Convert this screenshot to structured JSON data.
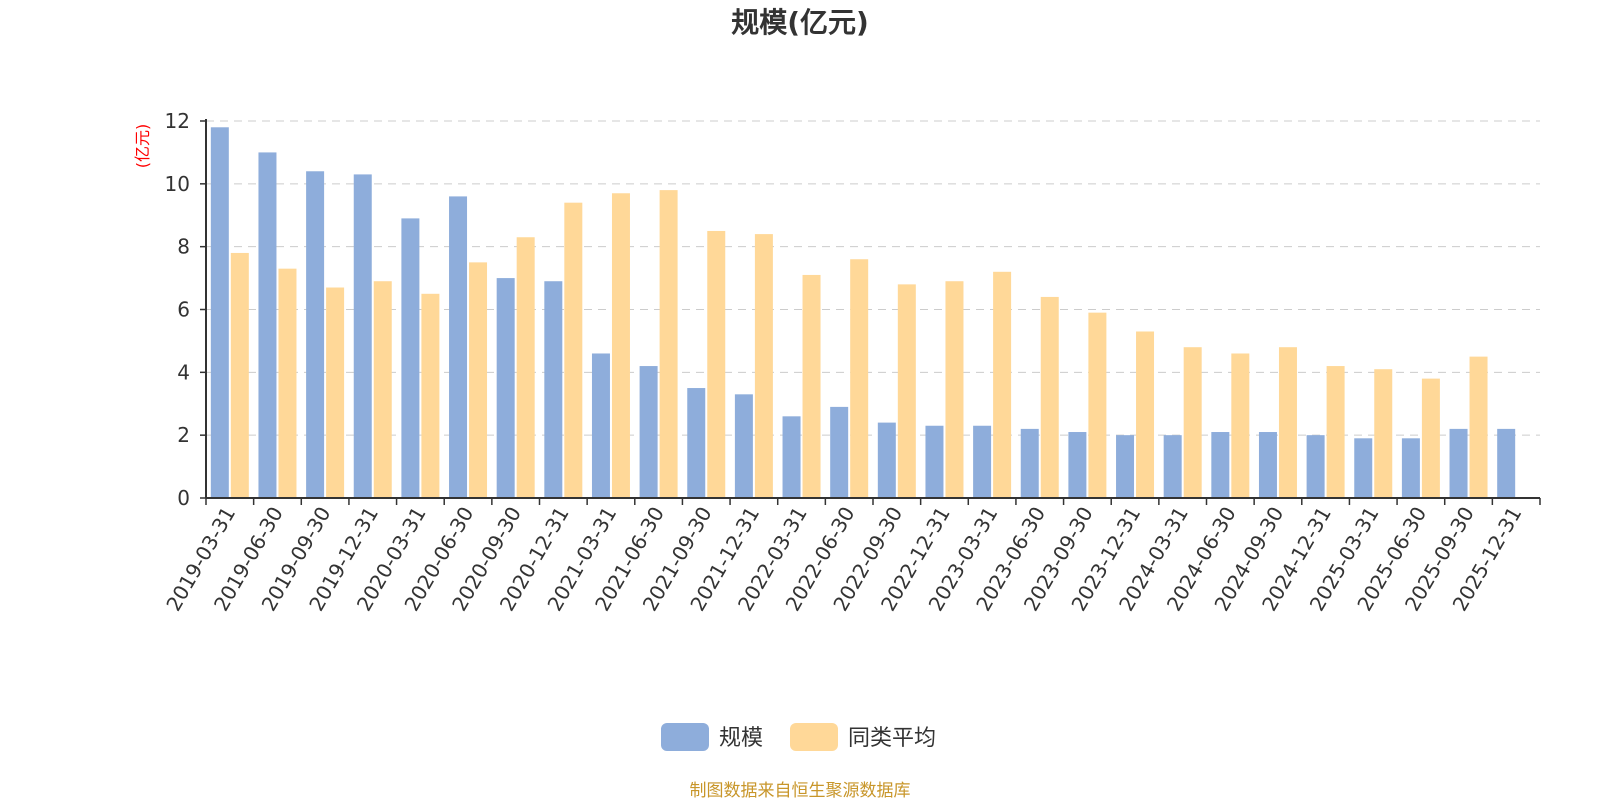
{
  "chart_data": {
    "type": "bar",
    "title": "规模(亿元)",
    "ylabel": "(亿元)",
    "ylim": [
      0,
      12
    ],
    "yticks": [
      0,
      2,
      4,
      6,
      8,
      10,
      12
    ],
    "grid": true,
    "legend_position": "bottom-center",
    "categories": [
      "2019-03-31",
      "2019-06-30",
      "2019-09-30",
      "2019-12-31",
      "2020-03-31",
      "2020-06-30",
      "2020-09-30",
      "2020-12-31",
      "2021-03-31",
      "2021-06-30",
      "2021-09-30",
      "2021-12-31",
      "2022-03-31",
      "2022-06-30",
      "2022-09-30",
      "2022-12-31",
      "2023-03-31",
      "2023-06-30",
      "2023-09-30",
      "2023-12-31",
      "2024-03-31",
      "2024-06-30",
      "2024-09-30",
      "2024-12-31",
      "2025-03-31",
      "2025-06-30",
      "2025-09-30",
      "2025-12-31"
    ],
    "series": [
      {
        "name": "规模",
        "color": "#8eaddb",
        "values": [
          11.8,
          11.0,
          10.4,
          10.3,
          8.9,
          9.6,
          7.0,
          6.9,
          4.6,
          4.2,
          3.5,
          3.3,
          2.6,
          2.9,
          2.4,
          2.3,
          2.3,
          2.2,
          2.1,
          2.0,
          2.0,
          2.1,
          2.1,
          2.0,
          1.9,
          1.9,
          2.2,
          2.2
        ]
      },
      {
        "name": "同类平均",
        "color": "#ffd898",
        "values": [
          7.8,
          7.3,
          6.7,
          6.9,
          6.5,
          7.5,
          8.3,
          9.4,
          9.7,
          9.8,
          8.5,
          8.4,
          7.1,
          7.6,
          6.8,
          6.9,
          7.2,
          6.4,
          5.9,
          5.3,
          4.8,
          4.6,
          4.8,
          4.2,
          4.1,
          3.8,
          4.5,
          null
        ]
      }
    ],
    "source": "制图数据来自恒生聚源数据库"
  }
}
